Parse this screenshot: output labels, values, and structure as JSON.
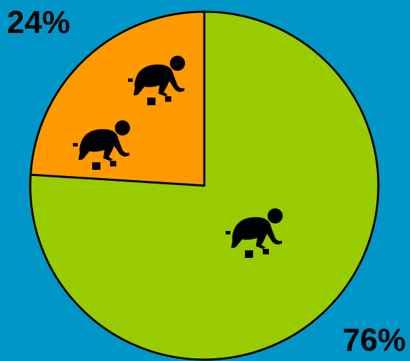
{
  "chart_data": {
    "type": "pie",
    "values": [
      24,
      76
    ],
    "value_labels": [
      "24%",
      "76%"
    ],
    "colors": [
      "#ff9900",
      "#99cc00"
    ],
    "start": "top",
    "direction": "counterclockwise"
  }
}
